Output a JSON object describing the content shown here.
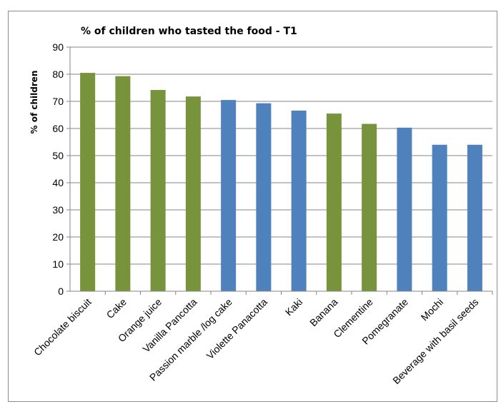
{
  "chart_data": {
    "type": "bar",
    "title": "% of children who tasted the food - T1",
    "ylabel": "% of children",
    "xlabel": "",
    "ylim": [
      0,
      90
    ],
    "yticks": [
      0,
      10,
      20,
      30,
      40,
      50,
      60,
      70,
      80,
      90
    ],
    "grid": true,
    "legend": "none",
    "categories": [
      "Chocolate biscuit",
      "Cake",
      "Orange juice",
      "Vanilla Pancotta",
      "Passion marble /log cake",
      "Violette Panacotta",
      "Kaki",
      "Banana",
      "Clementine",
      "Pomegranate",
      "Mochi",
      "Beverage with basil seeds"
    ],
    "values": [
      80.5,
      79.3,
      74.2,
      71.8,
      70.5,
      69.3,
      66.6,
      65.5,
      61.7,
      60.3,
      54.0,
      54.0
    ],
    "colors": [
      "#77933c",
      "#77933c",
      "#77933c",
      "#77933c",
      "#4f81bd",
      "#4f81bd",
      "#4f81bd",
      "#77933c",
      "#77933c",
      "#4f81bd",
      "#4f81bd",
      "#4f81bd"
    ]
  }
}
